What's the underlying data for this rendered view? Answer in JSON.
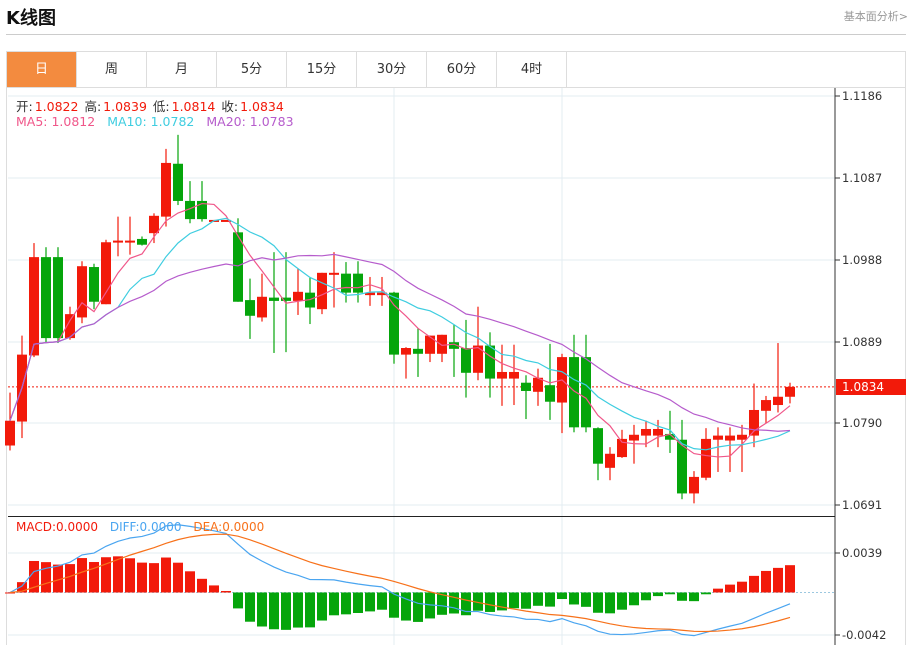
{
  "header": {
    "title": "K线图",
    "link": "基本面分析>"
  },
  "tabs": [
    {
      "label": "日",
      "active": true
    },
    {
      "label": "周"
    },
    {
      "label": "月"
    },
    {
      "label": "5分"
    },
    {
      "label": "15分"
    },
    {
      "label": "30分"
    },
    {
      "label": "60分"
    },
    {
      "label": "4时"
    }
  ],
  "ohlc_info": {
    "open_label": "开:",
    "open": "1.0822",
    "high_label": "高:",
    "high": "1.0839",
    "low_label": "低:",
    "low": "1.0814",
    "close_label": "收:",
    "close": "1.0834"
  },
  "ma_info": {
    "ma5": "MA5: 1.0812",
    "ma10": "MA10: 1.0782",
    "ma20": "MA20: 1.0783"
  },
  "macd_info": {
    "macd": "MACD:0.0000",
    "diff": "DIFF:0.0000",
    "dea": "DEA:0.0000"
  },
  "current_price": "1.0834",
  "colors": {
    "up": "#f21a0a",
    "down": "#05a50b",
    "ma5": "#f0578a",
    "ma10": "#3fcde0",
    "ma20": "#b65ccc",
    "diff": "#4aa5f0",
    "dea": "#f7711a",
    "active_tab": "#f38b3f"
  },
  "chart_data": {
    "type": "candlestick",
    "y_ticks": [
      "1.1186",
      "1.1087",
      "1.0988",
      "1.0889",
      "1.0790",
      "1.0691"
    ],
    "ylim": [
      1.0691,
      1.1186
    ],
    "macd_ticks": [
      "0.0039",
      "-0.0042"
    ],
    "macd_ylim": [
      -0.0042,
      0.0039
    ],
    "grid": true,
    "candles_ohlc": [
      [
        1.0763,
        1.0827,
        1.0757,
        1.0793
      ],
      [
        1.0792,
        1.0896,
        1.0772,
        1.0873
      ],
      [
        1.0872,
        1.1008,
        1.087,
        1.0991
      ],
      [
        1.0991,
        1.1003,
        1.0887,
        1.0893
      ],
      [
        1.0991,
        1.1003,
        1.0887,
        1.0893
      ],
      [
        1.0893,
        1.0931,
        1.0891,
        1.0922
      ],
      [
        1.0918,
        1.0986,
        1.0911,
        1.098
      ],
      [
        1.0979,
        1.0983,
        1.0928,
        1.0937
      ],
      [
        1.0934,
        1.1012,
        1.0934,
        1.1009
      ],
      [
        1.1009,
        1.104,
        1.0992,
        1.1011
      ],
      [
        1.1009,
        1.104,
        1.0994,
        1.1011
      ],
      [
        1.1013,
        1.1016,
        1.1005,
        1.1006
      ],
      [
        1.102,
        1.1044,
        1.1008,
        1.1041
      ],
      [
        1.104,
        1.1122,
        1.1028,
        1.1105
      ],
      [
        1.1104,
        1.1139,
        1.1054,
        1.1059
      ],
      [
        1.1059,
        1.1083,
        1.1032,
        1.1037
      ],
      [
        1.1059,
        1.1083,
        1.1034,
        1.1037
      ],
      [
        1.1035,
        1.1036,
        1.1035,
        1.1036
      ],
      [
        1.1035,
        1.1036,
        1.1035,
        1.1036
      ],
      [
        1.1021,
        1.1038,
        1.0937,
        1.0937
      ],
      [
        1.0939,
        1.0965,
        1.0892,
        1.092
      ],
      [
        1.0918,
        1.0971,
        1.0913,
        1.0943
      ],
      [
        1.0942,
        1.0997,
        1.0875,
        1.0938
      ],
      [
        1.0942,
        1.0997,
        1.0876,
        1.0938
      ],
      [
        1.0938,
        1.0977,
        1.0921,
        1.0949
      ],
      [
        1.0948,
        1.0967,
        1.091,
        1.093
      ],
      [
        1.0928,
        1.0972,
        1.0922,
        1.0972
      ],
      [
        1.097,
        1.0997,
        1.093,
        1.0972
      ],
      [
        1.0971,
        1.0985,
        1.0936,
        1.0948
      ],
      [
        1.0971,
        1.0986,
        1.0936,
        1.0948
      ],
      [
        1.0945,
        1.0967,
        1.0932,
        1.0948
      ],
      [
        1.0945,
        1.0967,
        1.0932,
        1.0948
      ],
      [
        1.0948,
        1.0949,
        1.0862,
        1.0873
      ],
      [
        1.0873,
        1.0882,
        1.0844,
        1.0881
      ],
      [
        1.088,
        1.0905,
        1.0846,
        1.0874
      ],
      [
        1.0874,
        1.0896,
        1.0864,
        1.0896
      ],
      [
        1.0874,
        1.0897,
        1.0864,
        1.0897
      ],
      [
        1.0888,
        1.0909,
        1.0846,
        1.088
      ],
      [
        1.0881,
        1.0915,
        1.0821,
        1.0851
      ],
      [
        1.0851,
        1.0931,
        1.0842,
        1.0884
      ],
      [
        1.0884,
        1.09,
        1.0821,
        1.0844
      ],
      [
        1.0844,
        1.0885,
        1.0811,
        1.0852
      ],
      [
        1.0844,
        1.0885,
        1.0812,
        1.0852
      ],
      [
        1.0839,
        1.0848,
        1.0795,
        1.0829
      ],
      [
        1.0828,
        1.0856,
        1.0811,
        1.0845
      ],
      [
        1.0836,
        1.0886,
        1.0794,
        1.0816
      ],
      [
        1.0815,
        1.0874,
        1.0778,
        1.087
      ],
      [
        1.087,
        1.0897,
        1.0779,
        1.0785
      ],
      [
        1.087,
        1.0897,
        1.0779,
        1.0785
      ],
      [
        1.0784,
        1.0785,
        1.0721,
        1.0741
      ],
      [
        1.0736,
        1.0761,
        1.0721,
        1.0753
      ],
      [
        1.0749,
        1.0782,
        1.0748,
        1.0771
      ],
      [
        1.0769,
        1.0788,
        1.0741,
        1.0776
      ],
      [
        1.0775,
        1.0793,
        1.0761,
        1.0783
      ],
      [
        1.0775,
        1.0794,
        1.0761,
        1.0783
      ],
      [
        1.0777,
        1.0805,
        1.0754,
        1.077
      ],
      [
        1.077,
        1.0794,
        1.0698,
        1.0705
      ],
      [
        1.0705,
        1.0732,
        1.0693,
        1.0725
      ],
      [
        1.0724,
        1.0784,
        1.0721,
        1.0771
      ],
      [
        1.077,
        1.0785,
        1.0731,
        1.0775
      ],
      [
        1.0769,
        1.0785,
        1.0731,
        1.0775
      ],
      [
        1.077,
        1.0788,
        1.0731,
        1.0776
      ],
      [
        1.0775,
        1.0838,
        1.0761,
        1.0806
      ],
      [
        1.0805,
        1.0823,
        1.079,
        1.0818
      ],
      [
        1.0812,
        1.0887,
        1.0803,
        1.0822
      ],
      [
        1.0822,
        1.0839,
        1.0814,
        1.0834
      ]
    ]
  }
}
